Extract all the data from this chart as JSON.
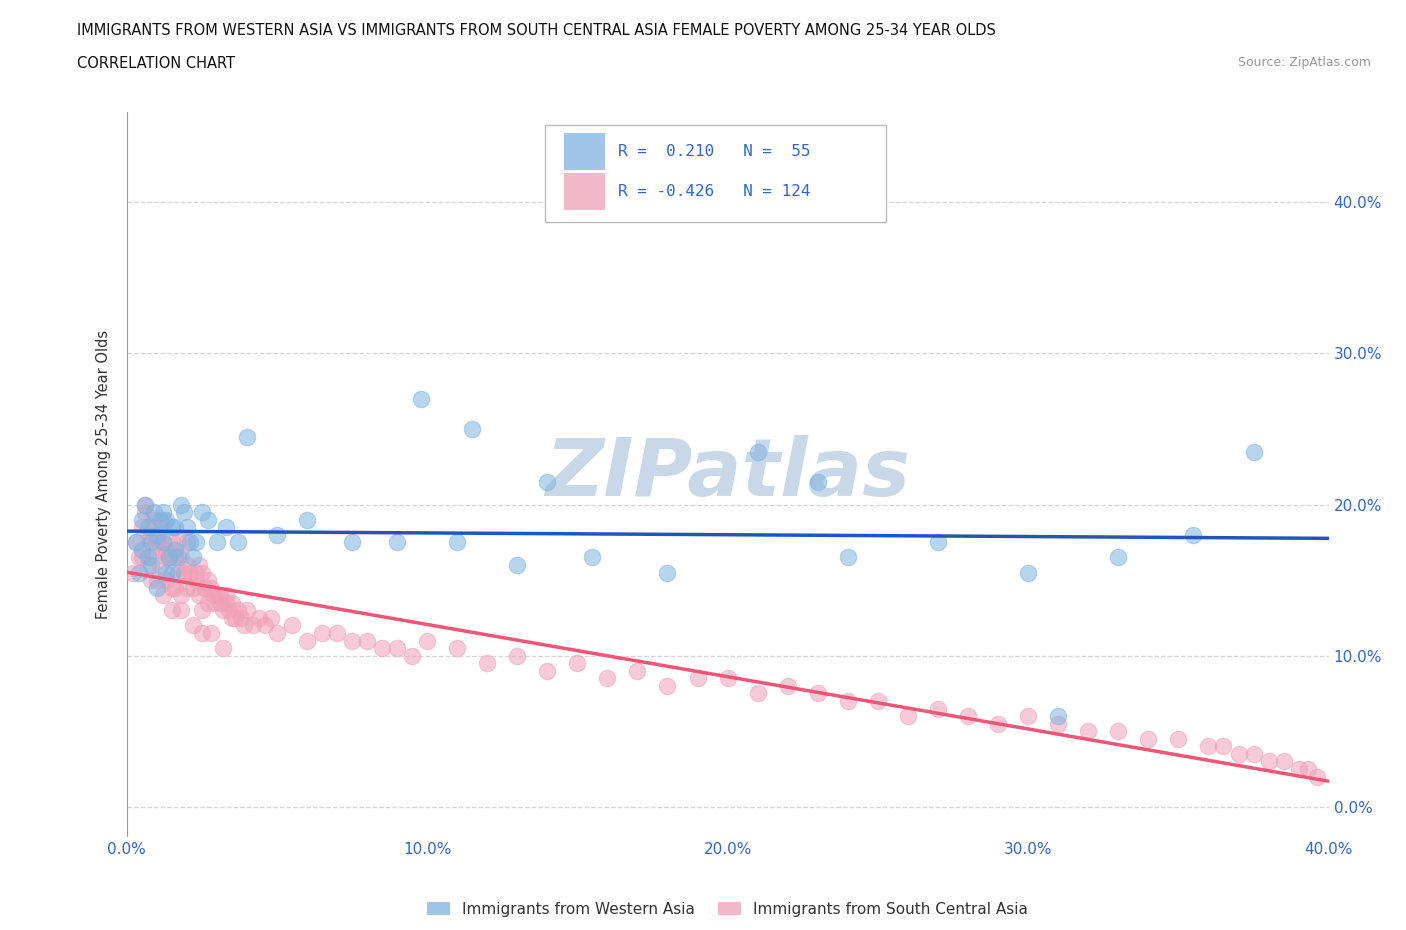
{
  "title_line1": "IMMIGRANTS FROM WESTERN ASIA VS IMMIGRANTS FROM SOUTH CENTRAL ASIA FEMALE POVERTY AMONG 25-34 YEAR OLDS",
  "title_line2": "CORRELATION CHART",
  "source_text": "Source: ZipAtlas.com",
  "ylabel": "Female Poverty Among 25-34 Year Olds",
  "xlim": [
    0.0,
    0.4
  ],
  "ylim": [
    -0.02,
    0.46
  ],
  "xticks": [
    0.0,
    0.1,
    0.2,
    0.3,
    0.4
  ],
  "xticklabels": [
    "0.0%",
    "10.0%",
    "20.0%",
    "30.0%",
    "40.0%"
  ],
  "yticks": [
    0.0,
    0.1,
    0.2,
    0.3,
    0.4
  ],
  "yticklabels": [
    "0.0%",
    "10.0%",
    "20.0%",
    "30.0%",
    "40.0%"
  ],
  "grid_color": "#cccccc",
  "background_color": "#ffffff",
  "watermark_text": "ZIPatlas",
  "watermark_color": "#c8d8e8",
  "blue_color": "#7fb3e0",
  "pink_color": "#f0a0b8",
  "blue_line_color": "#2255bb",
  "pink_line_color": "#ee5577",
  "legend_label1": "Immigrants from Western Asia",
  "legend_label2": "Immigrants from South Central Asia",
  "blue_scatter_x": [
    0.003,
    0.004,
    0.005,
    0.005,
    0.006,
    0.007,
    0.007,
    0.008,
    0.008,
    0.009,
    0.01,
    0.01,
    0.011,
    0.012,
    0.012,
    0.013,
    0.013,
    0.014,
    0.015,
    0.015,
    0.016,
    0.016,
    0.017,
    0.018,
    0.019,
    0.02,
    0.021,
    0.022,
    0.023,
    0.025,
    0.027,
    0.03,
    0.033,
    0.037,
    0.04,
    0.05,
    0.06,
    0.075,
    0.09,
    0.11,
    0.13,
    0.155,
    0.18,
    0.21,
    0.24,
    0.27,
    0.3,
    0.33,
    0.355,
    0.375,
    0.098,
    0.115,
    0.14,
    0.23,
    0.31
  ],
  "blue_scatter_y": [
    0.175,
    0.155,
    0.19,
    0.17,
    0.2,
    0.185,
    0.165,
    0.175,
    0.16,
    0.195,
    0.145,
    0.18,
    0.19,
    0.175,
    0.195,
    0.155,
    0.19,
    0.165,
    0.155,
    0.185,
    0.17,
    0.185,
    0.165,
    0.2,
    0.195,
    0.185,
    0.175,
    0.165,
    0.175,
    0.195,
    0.19,
    0.175,
    0.185,
    0.175,
    0.245,
    0.18,
    0.19,
    0.175,
    0.175,
    0.175,
    0.16,
    0.165,
    0.155,
    0.235,
    0.165,
    0.175,
    0.155,
    0.165,
    0.18,
    0.235,
    0.27,
    0.25,
    0.215,
    0.215,
    0.06
  ],
  "pink_scatter_x": [
    0.002,
    0.003,
    0.004,
    0.005,
    0.005,
    0.006,
    0.007,
    0.007,
    0.008,
    0.008,
    0.009,
    0.01,
    0.01,
    0.011,
    0.012,
    0.012,
    0.013,
    0.013,
    0.014,
    0.015,
    0.015,
    0.016,
    0.016,
    0.017,
    0.017,
    0.018,
    0.018,
    0.019,
    0.02,
    0.02,
    0.021,
    0.022,
    0.023,
    0.024,
    0.025,
    0.025,
    0.026,
    0.027,
    0.028,
    0.029,
    0.03,
    0.031,
    0.032,
    0.033,
    0.034,
    0.035,
    0.037,
    0.038,
    0.04,
    0.042,
    0.044,
    0.046,
    0.048,
    0.05,
    0.055,
    0.06,
    0.065,
    0.07,
    0.075,
    0.08,
    0.085,
    0.09,
    0.095,
    0.1,
    0.11,
    0.12,
    0.13,
    0.14,
    0.15,
    0.16,
    0.17,
    0.18,
    0.19,
    0.2,
    0.21,
    0.22,
    0.23,
    0.24,
    0.25,
    0.26,
    0.27,
    0.28,
    0.29,
    0.3,
    0.31,
    0.32,
    0.33,
    0.34,
    0.35,
    0.36,
    0.365,
    0.37,
    0.375,
    0.38,
    0.385,
    0.39,
    0.393,
    0.396,
    0.012,
    0.015,
    0.018,
    0.022,
    0.025,
    0.028,
    0.032,
    0.008,
    0.01,
    0.013,
    0.016,
    0.019,
    0.023,
    0.026,
    0.029,
    0.033,
    0.036,
    0.039,
    0.006,
    0.009,
    0.012,
    0.02,
    0.024,
    0.027,
    0.031,
    0.035
  ],
  "pink_scatter_y": [
    0.155,
    0.175,
    0.165,
    0.185,
    0.165,
    0.195,
    0.18,
    0.16,
    0.17,
    0.15,
    0.185,
    0.15,
    0.17,
    0.16,
    0.175,
    0.19,
    0.165,
    0.15,
    0.165,
    0.145,
    0.175,
    0.165,
    0.145,
    0.175,
    0.155,
    0.165,
    0.14,
    0.155,
    0.16,
    0.145,
    0.155,
    0.145,
    0.15,
    0.14,
    0.155,
    0.13,
    0.145,
    0.135,
    0.145,
    0.135,
    0.14,
    0.135,
    0.13,
    0.14,
    0.13,
    0.135,
    0.13,
    0.125,
    0.13,
    0.12,
    0.125,
    0.12,
    0.125,
    0.115,
    0.12,
    0.11,
    0.115,
    0.115,
    0.11,
    0.11,
    0.105,
    0.105,
    0.1,
    0.11,
    0.105,
    0.095,
    0.1,
    0.09,
    0.095,
    0.085,
    0.09,
    0.08,
    0.085,
    0.085,
    0.075,
    0.08,
    0.075,
    0.07,
    0.07,
    0.06,
    0.065,
    0.06,
    0.055,
    0.06,
    0.055,
    0.05,
    0.05,
    0.045,
    0.045,
    0.04,
    0.04,
    0.035,
    0.035,
    0.03,
    0.03,
    0.025,
    0.025,
    0.02,
    0.14,
    0.13,
    0.13,
    0.12,
    0.115,
    0.115,
    0.105,
    0.18,
    0.175,
    0.17,
    0.165,
    0.155,
    0.155,
    0.145,
    0.14,
    0.135,
    0.125,
    0.12,
    0.2,
    0.19,
    0.185,
    0.175,
    0.16,
    0.15,
    0.14,
    0.125
  ]
}
